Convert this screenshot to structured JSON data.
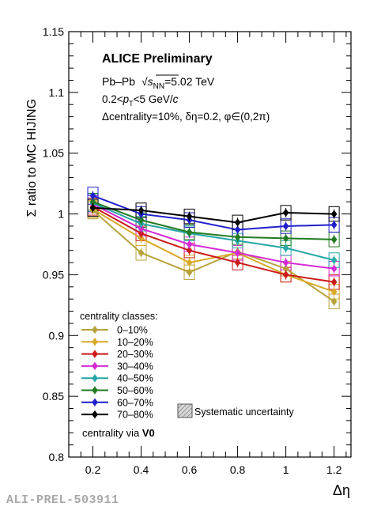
{
  "chart_data": {
    "type": "line",
    "ylabel": "Σ ratio to MC HIJING",
    "xlabel": "Δη",
    "xlim": [
      0.1,
      1.27
    ],
    "ylim": [
      0.8,
      1.15
    ],
    "xticks": [
      "0.2",
      "0.4",
      "0.6",
      "0.8",
      "1",
      "1.2"
    ],
    "yticks": [
      "0.8",
      "0.85",
      "0.9",
      "0.95",
      "1",
      "1.05",
      "1.1",
      "1.15"
    ],
    "grid": false,
    "annotations": {
      "title": "ALICE Preliminary",
      "system_prefix": "Pb–Pb  ",
      "system_energy": "=5.02 TeV",
      "pt_range": "0.2<p_T<5 GeV/c",
      "bins": "Δcentrality=10%, δη=0.2, φ∈(0,2π)"
    },
    "legend": {
      "header": "centrality classes:",
      "position": "bottom-left",
      "footer_prefix": "centrality via ",
      "footer_bold": "V0",
      "syst_label": "Systematic uncertainty"
    },
    "x": [
      0.2,
      0.4,
      0.6,
      0.8,
      1.0,
      1.2
    ],
    "series": [
      {
        "name": "0–10%",
        "color": "#b5a33a",
        "values": [
          1.003,
          0.968,
          0.952,
          0.969,
          0.955,
          0.928
        ]
      },
      {
        "name": "10–20%",
        "color": "#d9a928",
        "values": [
          1.004,
          0.98,
          0.96,
          0.968,
          0.95,
          0.936
        ]
      },
      {
        "name": "20–30%",
        "color": "#cc1a1a",
        "values": [
          1.006,
          0.984,
          0.97,
          0.96,
          0.95,
          0.944
        ]
      },
      {
        "name": "30–40%",
        "color": "#d629d6",
        "values": [
          1.008,
          0.988,
          0.975,
          0.968,
          0.96,
          0.955
        ]
      },
      {
        "name": "40–50%",
        "color": "#26a6a6",
        "values": [
          1.009,
          0.992,
          0.984,
          0.978,
          0.972,
          0.962
        ]
      },
      {
        "name": "50–60%",
        "color": "#227a22",
        "values": [
          1.01,
          0.995,
          0.985,
          0.981,
          0.98,
          0.979
        ]
      },
      {
        "name": "60–70%",
        "color": "#1f1fcc",
        "values": [
          1.015,
          1.0,
          0.995,
          0.987,
          0.99,
          0.991
        ]
      },
      {
        "name": "70–80%",
        "color": "#000000",
        "values": [
          1.005,
          1.003,
          0.998,
          0.993,
          1.001,
          1.0
        ]
      }
    ]
  },
  "footer_ref": "ALI-PREL-503911"
}
